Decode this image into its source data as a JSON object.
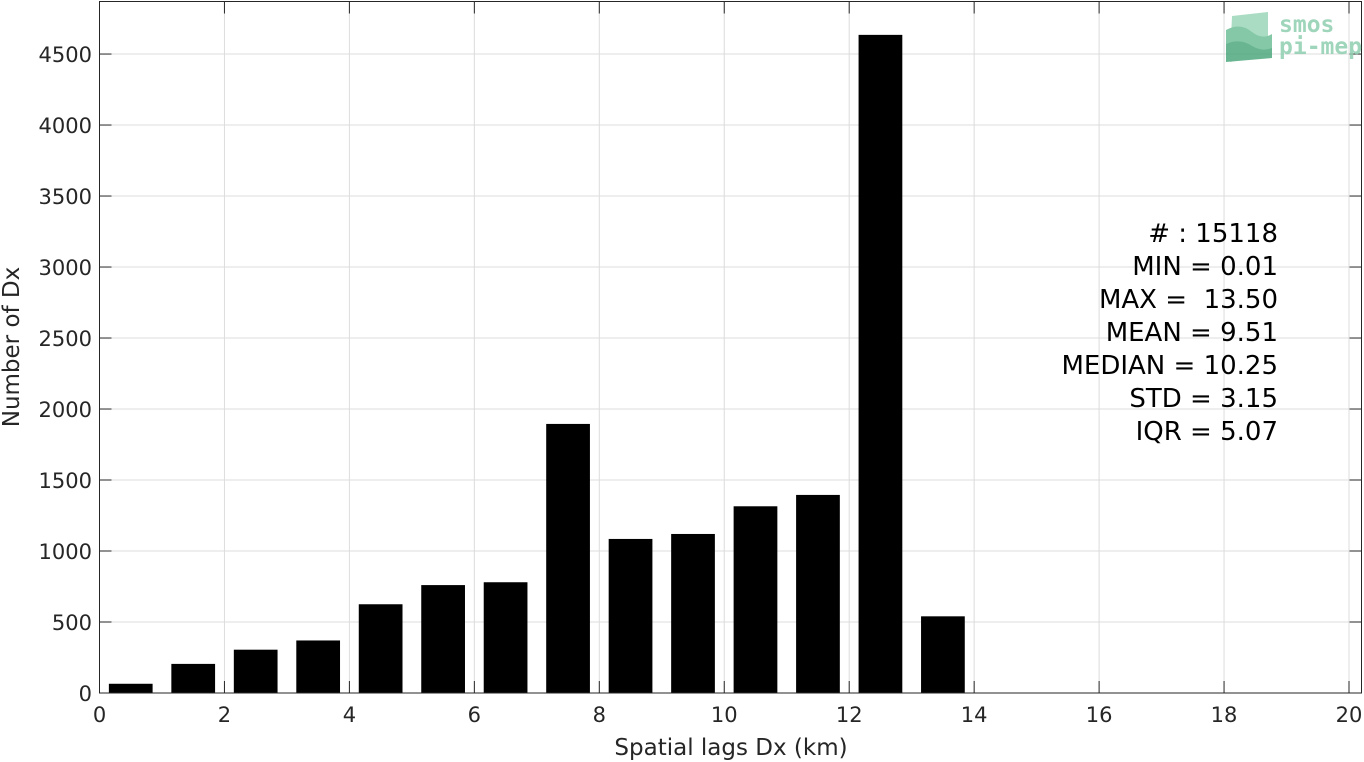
{
  "chart_data": {
    "type": "bar",
    "xlabel": "Spatial lags Dx (km)",
    "ylabel": "Number of Dx",
    "xlim": [
      0,
      20.2
    ],
    "ylim": [
      0,
      4870
    ],
    "x_ticks": [
      0,
      2,
      4,
      6,
      8,
      10,
      12,
      14,
      16,
      18,
      20
    ],
    "y_ticks": [
      0,
      500,
      1000,
      1500,
      2000,
      2500,
      3000,
      3500,
      4000,
      4500
    ],
    "grid": true,
    "bin_width": 1,
    "bar_width_fraction": 0.7,
    "bars": [
      {
        "x": 0.5,
        "value": 65
      },
      {
        "x": 1.5,
        "value": 205
      },
      {
        "x": 2.5,
        "value": 305
      },
      {
        "x": 3.5,
        "value": 370
      },
      {
        "x": 4.5,
        "value": 625
      },
      {
        "x": 5.5,
        "value": 760
      },
      {
        "x": 6.5,
        "value": 780
      },
      {
        "x": 7.5,
        "value": 1895
      },
      {
        "x": 8.5,
        "value": 1085
      },
      {
        "x": 9.5,
        "value": 1120
      },
      {
        "x": 10.5,
        "value": 1315
      },
      {
        "x": 11.5,
        "value": 1395
      },
      {
        "x": 12.5,
        "value": 4635
      },
      {
        "x": 13.5,
        "value": 540
      }
    ],
    "bar_color": "#000000",
    "grid_color": "#dcdcdc",
    "axis_color": "#262626"
  },
  "stats": [
    "# : 15118",
    "MIN = 0.01",
    "MAX =  13.50",
    "MEAN = 9.51",
    "MEDIAN = 10.25",
    "STD = 3.15",
    "IQR = 5.07"
  ],
  "logo": {
    "line1": "smos",
    "line2": "pi-mep",
    "color": "#8fcfb0"
  }
}
